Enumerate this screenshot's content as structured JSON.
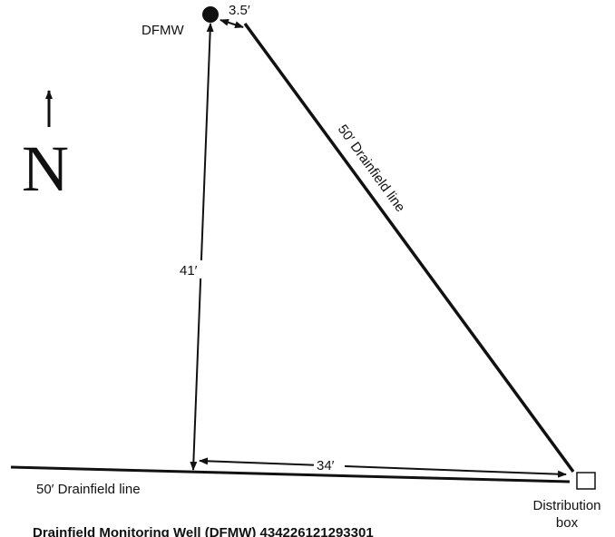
{
  "labels": {
    "well": "DFMW",
    "well_offset": "3.5′",
    "diagonal_line": "50′ Drainfield line",
    "vertical_distance": "41′",
    "horizontal_distance": "34′",
    "bottom_line": "50′ Drainfield line",
    "box_line1": "Distribution",
    "box_line2": "box",
    "north": "N"
  },
  "caption": "Drainfield Monitoring Well (DFMW) 434226121293301"
}
